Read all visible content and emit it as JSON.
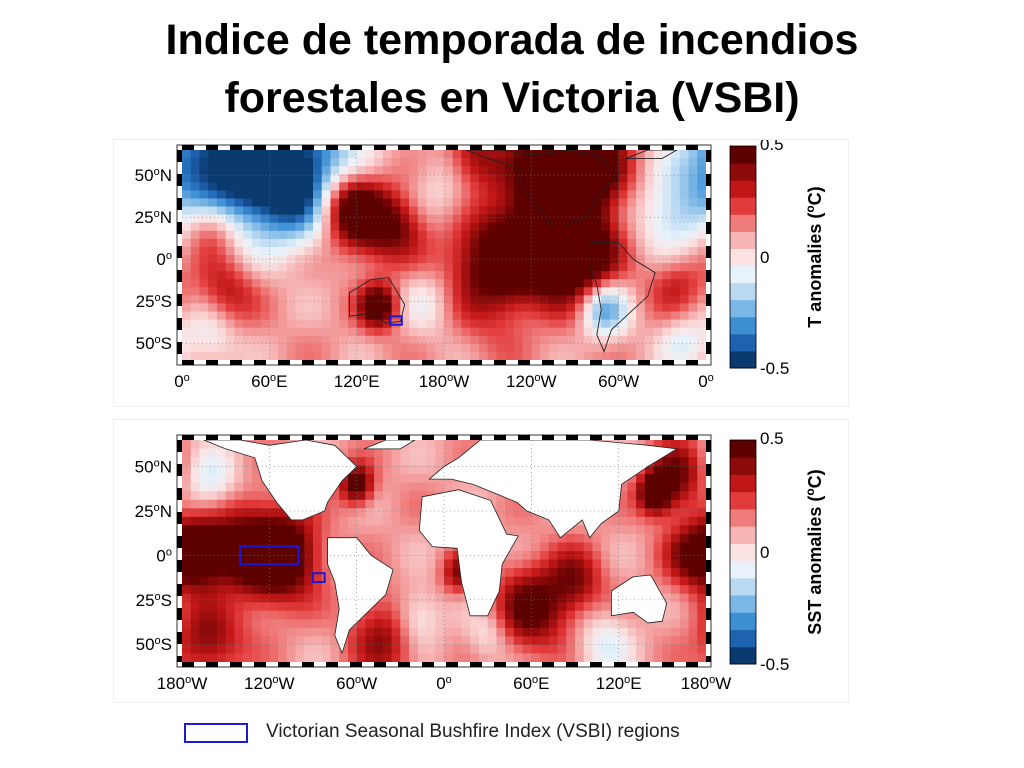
{
  "title_lines": [
    "Indice de temporada de incendios",
    "forestales en Victoria (VSBI)"
  ],
  "chart_data": [
    {
      "type": "heatmap",
      "name": "surface-temperature-anomaly-map",
      "colorbar_label": "T anomalies (°C)",
      "colorbar_label_parts": {
        "before": "T anomalies (",
        "sup": "o",
        "after": "C)"
      },
      "colorbar_range": [
        -0.5,
        0.5
      ],
      "colorbar_ticks": [
        "0.5",
        "0",
        "-0.5"
      ],
      "x_ticks": [
        {
          "value": 0,
          "label": "0",
          "sup": "o",
          "suffix": ""
        },
        {
          "value": 60,
          "label": "60",
          "sup": "o",
          "suffix": "E"
        },
        {
          "value": 120,
          "label": "120",
          "sup": "o",
          "suffix": "E"
        },
        {
          "value": 180,
          "label": "180",
          "sup": "o",
          "suffix": "W"
        },
        {
          "value": 240,
          "label": "120",
          "sup": "o",
          "suffix": "W"
        },
        {
          "value": 300,
          "label": "60",
          "sup": "o",
          "suffix": "W"
        },
        {
          "value": 360,
          "label": "0",
          "sup": "o",
          "suffix": ""
        }
      ],
      "y_ticks": [
        {
          "value": 50,
          "label": "50",
          "sup": "o",
          "suffix": "N"
        },
        {
          "value": 25,
          "label": "25",
          "sup": "o",
          "suffix": "N"
        },
        {
          "value": 0,
          "label": "0",
          "sup": "o",
          "suffix": ""
        },
        {
          "value": -25,
          "label": "25",
          "sup": "o",
          "suffix": "S"
        },
        {
          "value": -50,
          "label": "50",
          "sup": "o",
          "suffix": "S"
        }
      ],
      "xlim": [
        0,
        360
      ],
      "ylim": [
        -60,
        65
      ],
      "regions": [
        {
          "lon_min": 143,
          "lon_max": 151,
          "lat_min": -39,
          "lat_max": -34
        }
      ],
      "anomaly_blobs": [
        {
          "lon": 40,
          "lat": 50,
          "value": -0.5,
          "r": 40
        },
        {
          "lon": 10,
          "lat": 58,
          "value": -0.35,
          "r": 35
        },
        {
          "lon": 75,
          "lat": 40,
          "value": -0.3,
          "r": 30
        },
        {
          "lon": 90,
          "lat": 55,
          "value": -0.45,
          "r": 40
        },
        {
          "lon": 20,
          "lat": 20,
          "value": 0.3,
          "r": 20
        },
        {
          "lon": 30,
          "lat": -20,
          "value": 0.25,
          "r": 22
        },
        {
          "lon": 125,
          "lat": 25,
          "value": 0.45,
          "r": 25
        },
        {
          "lon": 110,
          "lat": 35,
          "value": 0.35,
          "r": 22
        },
        {
          "lon": 200,
          "lat": 60,
          "value": 0.3,
          "r": 20
        },
        {
          "lon": 150,
          "lat": 20,
          "value": 0.25,
          "r": 20
        },
        {
          "lon": 135,
          "lat": -28,
          "value": 0.5,
          "r": 14
        },
        {
          "lon": 210,
          "lat": 0,
          "value": 0.35,
          "r": 40
        },
        {
          "lon": 250,
          "lat": 0,
          "value": 0.45,
          "r": 40
        },
        {
          "lon": 275,
          "lat": 5,
          "value": 0.4,
          "r": 25
        },
        {
          "lon": 255,
          "lat": 55,
          "value": 0.5,
          "r": 30
        },
        {
          "lon": 280,
          "lat": 55,
          "value": 0.45,
          "r": 28
        },
        {
          "lon": 290,
          "lat": -30,
          "value": -0.45,
          "r": 18
        },
        {
          "lon": 185,
          "lat": 35,
          "value": -0.2,
          "r": 28
        },
        {
          "lon": 335,
          "lat": 25,
          "value": -0.25,
          "r": 25
        },
        {
          "lon": 20,
          "lat": -45,
          "value": -0.2,
          "r": 20
        },
        {
          "lon": 170,
          "lat": -25,
          "value": -0.2,
          "r": 22
        },
        {
          "lon": 245,
          "lat": -30,
          "value": -0.15,
          "r": 25
        },
        {
          "lon": 345,
          "lat": -50,
          "value": -0.2,
          "r": 18
        },
        {
          "lon": 340,
          "lat": -15,
          "value": 0.2,
          "r": 20
        }
      ]
    },
    {
      "type": "heatmap",
      "name": "sea-surface-temperature-anomaly-map",
      "colorbar_label": "SST anomalies (°C)",
      "colorbar_label_parts": {
        "before": "SST anomalies (",
        "sup": "o",
        "after": "C)"
      },
      "colorbar_range": [
        -0.5,
        0.5
      ],
      "colorbar_ticks": [
        "0.5",
        "0",
        "-0.5"
      ],
      "x_ticks": [
        {
          "value": -180,
          "label": "180",
          "sup": "o",
          "suffix": "W"
        },
        {
          "value": -120,
          "label": "120",
          "sup": "o",
          "suffix": "W"
        },
        {
          "value": -60,
          "label": "60",
          "sup": "o",
          "suffix": "W"
        },
        {
          "value": 0,
          "label": "0",
          "sup": "o",
          "suffix": ""
        },
        {
          "value": 60,
          "label": "60",
          "sup": "o",
          "suffix": "E"
        },
        {
          "value": 120,
          "label": "120",
          "sup": "o",
          "suffix": "E"
        },
        {
          "value": 180,
          "label": "180",
          "sup": "o",
          "suffix": "W"
        }
      ],
      "y_ticks": [
        {
          "value": 50,
          "label": "50",
          "sup": "o",
          "suffix": "N"
        },
        {
          "value": 25,
          "label": "25",
          "sup": "o",
          "suffix": "N"
        },
        {
          "value": 0,
          "label": "0",
          "sup": "o",
          "suffix": ""
        },
        {
          "value": -25,
          "label": "25",
          "sup": "o",
          "suffix": "S"
        },
        {
          "value": -50,
          "label": "50",
          "sup": "o",
          "suffix": "S"
        }
      ],
      "xlim": [
        -180,
        180
      ],
      "ylim": [
        -60,
        65
      ],
      "regions": [
        {
          "lon_min": -140,
          "lon_max": -100,
          "lat_min": -5,
          "lat_max": 5
        },
        {
          "lon_min": -90,
          "lon_max": -82,
          "lat_min": -15,
          "lat_max": -10
        }
      ],
      "anomaly_blobs": [
        {
          "lon": -140,
          "lat": 0,
          "value": 0.45,
          "r": 30
        },
        {
          "lon": -110,
          "lat": 0,
          "value": 0.5,
          "r": 25
        },
        {
          "lon": -170,
          "lat": 2,
          "value": 0.4,
          "r": 20
        },
        {
          "lon": -160,
          "lat": -45,
          "value": 0.35,
          "r": 25
        },
        {
          "lon": -150,
          "lat": -25,
          "value": -0.2,
          "r": 22
        },
        {
          "lon": -160,
          "lat": 40,
          "value": -0.25,
          "r": 20
        },
        {
          "lon": -60,
          "lat": 40,
          "value": 0.45,
          "r": 12
        },
        {
          "lon": -40,
          "lat": -45,
          "value": 0.3,
          "r": 25
        },
        {
          "lon": 10,
          "lat": -10,
          "value": 0.3,
          "r": 12
        },
        {
          "lon": 60,
          "lat": -30,
          "value": 0.4,
          "r": 25
        },
        {
          "lon": 90,
          "lat": -15,
          "value": 0.3,
          "r": 20
        },
        {
          "lon": 145,
          "lat": 35,
          "value": 0.5,
          "r": 12
        },
        {
          "lon": 160,
          "lat": 45,
          "value": 0.35,
          "r": 20
        },
        {
          "lon": 170,
          "lat": 0,
          "value": 0.3,
          "r": 20
        },
        {
          "lon": -20,
          "lat": -35,
          "value": -0.25,
          "r": 18
        },
        {
          "lon": 30,
          "lat": -45,
          "value": -0.15,
          "r": 15
        },
        {
          "lon": 110,
          "lat": -50,
          "value": -0.2,
          "r": 20
        }
      ]
    }
  ],
  "legend": {
    "label": "Victorian Seasonal Bushfire Index (VSBI) regions",
    "box_color": "#1a1ad4"
  },
  "colors": {
    "colorbar_stops": [
      "#0a3a6e",
      "#1f62b0",
      "#3d8fd4",
      "#7ab6e6",
      "#b9d9f2",
      "#e8f2fa",
      "#fbe3e3",
      "#f6b5b5",
      "#ef7b7b",
      "#e23b3b",
      "#c01616",
      "#8c0a0a",
      "#5c0000"
    ],
    "land": "#ffffff",
    "coastline": "#222222",
    "region_box": "#1a1ad4"
  }
}
